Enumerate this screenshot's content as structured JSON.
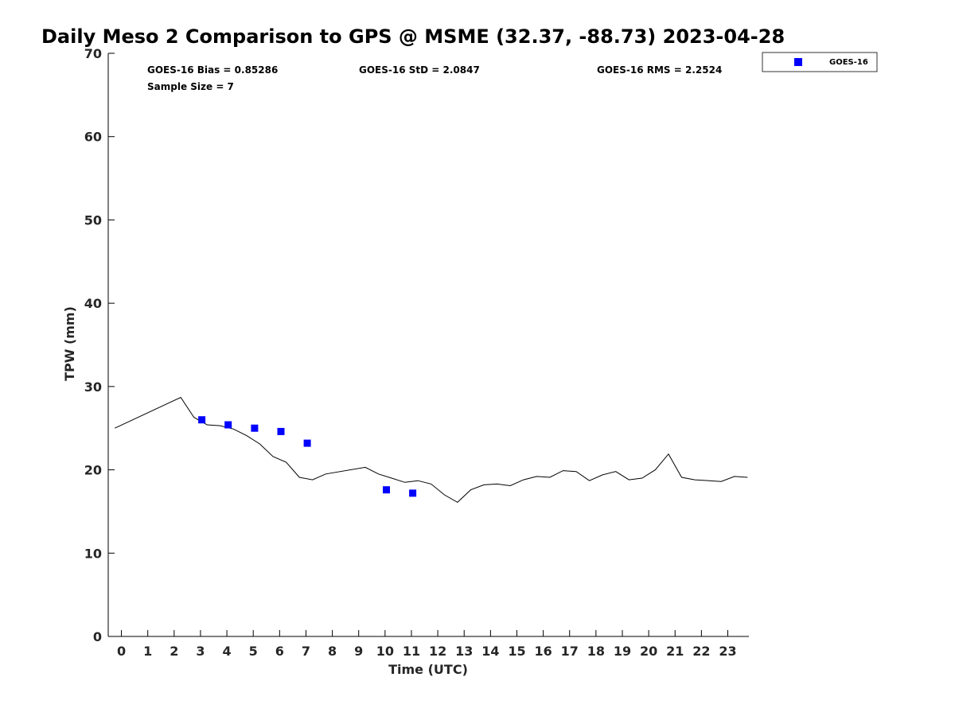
{
  "chart_data": {
    "type": "line",
    "title": "Daily Meso 2 Comparison to GPS @ MSME (32.37, -88.73) 2023-04-28",
    "xlabel": "Time (UTC)",
    "ylabel": "TPW (mm)",
    "xlim": [
      -0.5,
      23.8
    ],
    "ylim": [
      0,
      70
    ],
    "x_ticks": [
      0,
      1,
      2,
      3,
      4,
      5,
      6,
      7,
      8,
      9,
      10,
      11,
      12,
      13,
      14,
      15,
      16,
      17,
      18,
      19,
      20,
      21,
      22,
      23
    ],
    "x_tick_labels": [
      "0",
      "1",
      "2",
      "3",
      "4",
      "5",
      "6",
      "7",
      "8",
      "9",
      "10",
      "11",
      "12",
      "13",
      "14",
      "15",
      "16",
      "17",
      "18",
      "19",
      "20",
      "21",
      "22",
      "23"
    ],
    "y_ticks": [
      0,
      10,
      20,
      30,
      40,
      50,
      60,
      70
    ],
    "y_tick_labels": [
      "0",
      "10",
      "20",
      "30",
      "40",
      "50",
      "60",
      "70"
    ],
    "grid": false,
    "legend_position": "top-right outside",
    "series": [
      {
        "name": "GPS",
        "kind": "line",
        "color": "#000000",
        "x": [
          -0.25,
          2.25,
          2.75,
          3.25,
          3.75,
          4.25,
          4.75,
          5.25,
          5.75,
          6.25,
          6.75,
          7.25,
          7.75,
          9.25,
          9.75,
          10.25,
          10.75,
          11.25,
          11.75,
          12.25,
          12.75,
          13.25,
          13.75,
          14.25,
          14.75,
          15.25,
          15.75,
          16.25,
          16.75,
          17.25,
          17.75,
          18.25,
          18.75,
          19.25,
          19.75,
          20.25,
          20.75,
          21.25,
          21.75,
          22.75,
          23.25,
          23.75
        ],
        "y": [
          25.0,
          28.7,
          26.3,
          25.4,
          25.3,
          24.9,
          24.1,
          23.1,
          21.6,
          20.9,
          19.1,
          18.8,
          19.5,
          20.3,
          19.5,
          19.0,
          18.5,
          18.7,
          18.3,
          17.0,
          16.1,
          17.6,
          18.2,
          18.3,
          18.1,
          18.8,
          19.2,
          19.1,
          19.9,
          19.8,
          18.7,
          19.4,
          19.8,
          18.8,
          19.0,
          20.0,
          21.9,
          19.1,
          18.8,
          18.6,
          19.2,
          19.1
        ]
      },
      {
        "name": "GOES-16",
        "kind": "scatter",
        "marker": "square",
        "color": "#0000ff",
        "x": [
          3.05,
          4.05,
          5.05,
          6.05,
          7.05,
          10.05,
          11.05
        ],
        "y": [
          26.0,
          25.4,
          25.0,
          24.6,
          23.2,
          17.6,
          17.2
        ]
      }
    ],
    "annotations": [
      "GOES-16 Bias = 0.85286",
      "GOES-16 StD = 2.0847",
      "GOES-16 RMS = 2.2524",
      "Sample Size = 7"
    ],
    "legend_entries": [
      "GOES-16"
    ]
  }
}
